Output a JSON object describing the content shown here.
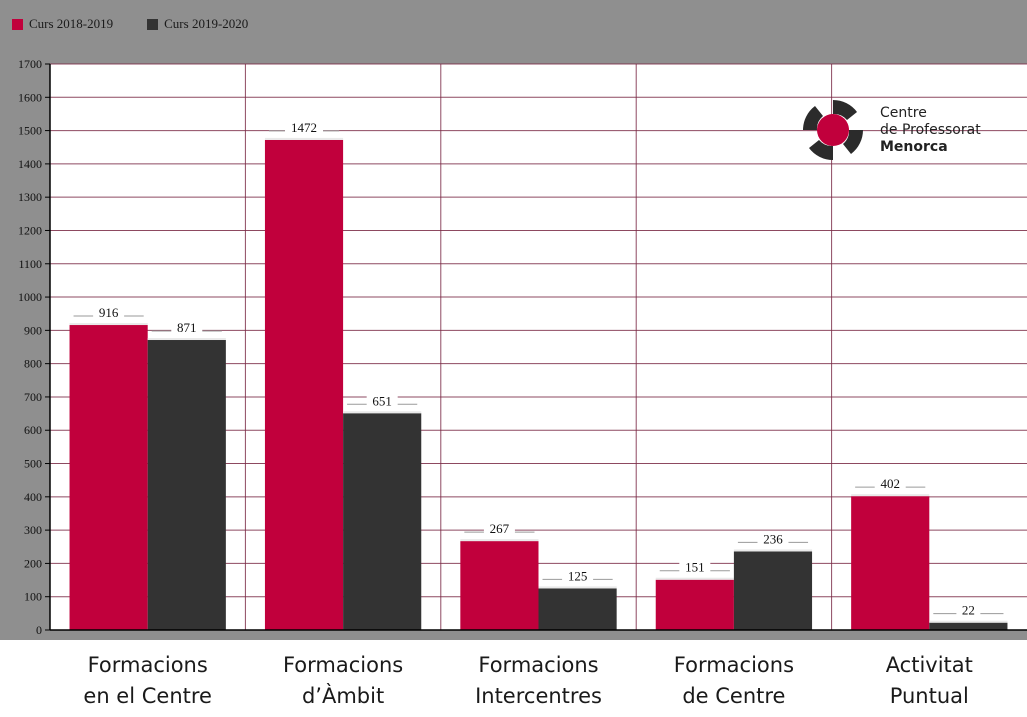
{
  "chart_data": {
    "type": "bar",
    "categories": [
      "Formacions\nen el Centre",
      "Formacions\nd’Àmbit",
      "Formacions\nIntercentres",
      "Formacions\nde Centre",
      "Activitat\nPuntual"
    ],
    "series": [
      {
        "name": "Curs 2018-2019",
        "values": [
          916,
          1472,
          267,
          151,
          402
        ],
        "color": "#c1003c"
      },
      {
        "name": "Curs 2019-2020",
        "values": [
          871,
          651,
          125,
          236,
          22
        ],
        "color": "#333333"
      }
    ],
    "ylim": [
      0,
      1700
    ],
    "yticks": [
      0,
      100,
      200,
      300,
      400,
      500,
      600,
      700,
      800,
      900,
      1000,
      1100,
      1200,
      1300,
      1400,
      1500,
      1600,
      1700
    ],
    "grid": true,
    "legend_position": "top-left",
    "title": "",
    "xlabel": "",
    "ylabel": ""
  },
  "logo": {
    "line1": "Centre",
    "line2": "de Professorat",
    "line3": "Menorca",
    "mark_color": "#c1003c",
    "mark_dark": "#2b2b2b"
  },
  "colors": {
    "frame": "#8f8f8f",
    "plot_bg": "#ffffff",
    "gridline": "#7a2a45"
  }
}
